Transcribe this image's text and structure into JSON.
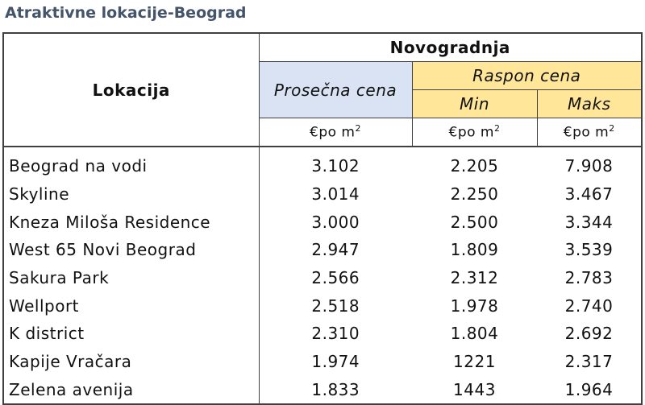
{
  "title": "Atraktivne lokacije-Beograd",
  "table": {
    "header": {
      "location": "Lokacija",
      "group": "Novogradnja",
      "average": "Prosečna cena",
      "range": "Raspon cena",
      "min": "Min",
      "max": "Maks",
      "units": [
        {
          "base": "€po m",
          "sup": "2"
        },
        {
          "base": "€po m",
          "sup": "2"
        },
        {
          "base": "€po m",
          "sup": "2"
        }
      ]
    },
    "rows": [
      [
        "Beograd na vodi",
        "3.102",
        "2.205",
        "7.908"
      ],
      [
        "Skyline",
        "3.014",
        "2.250",
        "3.467"
      ],
      [
        "Kneza Miloša Residence",
        "3.000",
        "2.500",
        "3.344"
      ],
      [
        "West 65 Novi Beograd",
        "2.947",
        "1.809",
        "3.539"
      ],
      [
        "Sakura Park",
        "2.566",
        "2.312",
        "2.783"
      ],
      [
        "Wellport",
        "2.518",
        "1.978",
        "2.740"
      ],
      [
        "K district",
        "2.310",
        "1.804",
        "2.692"
      ],
      [
        "Kapije Vračara",
        "1.974",
        "1221",
        "2.317"
      ],
      [
        "Zelena avenija",
        "1.833",
        "1443",
        "1.964"
      ]
    ]
  }
}
